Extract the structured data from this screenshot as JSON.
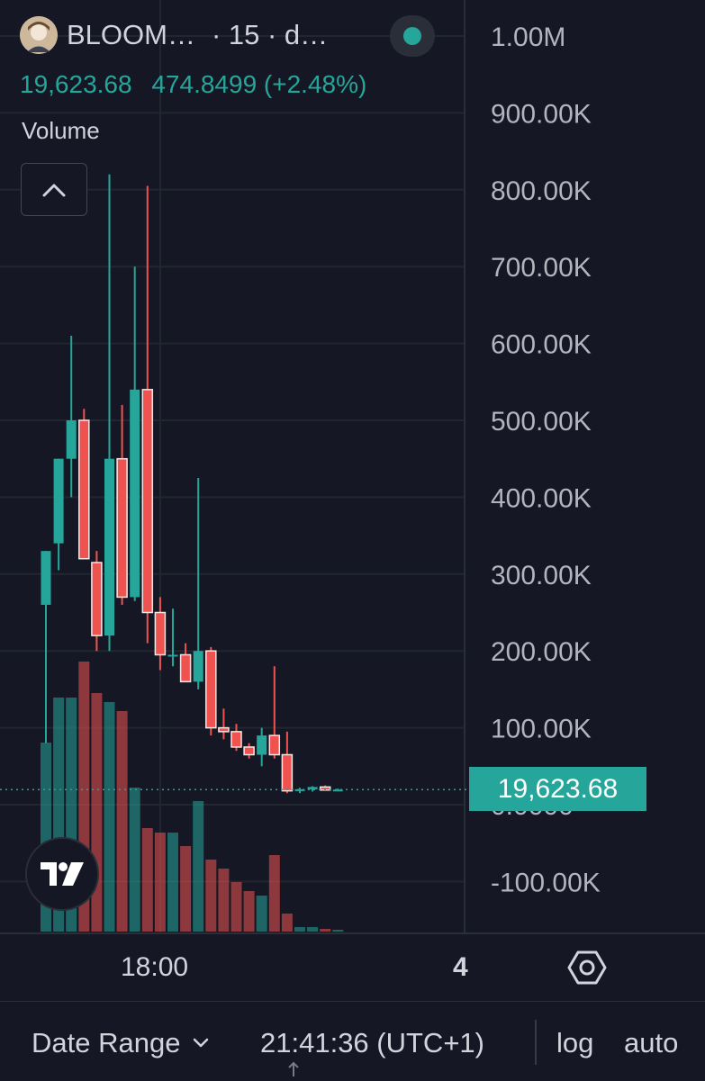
{
  "header": {
    "symbol": "BLOOM…",
    "interval": "· 15 · d…",
    "last_price": "19,623.68",
    "change": "474.8499 (+2.48%)",
    "status_color": "#26a69a"
  },
  "volume_label": "Volume",
  "icons": {
    "collapse": "chevron-up-icon",
    "logo": "tradingview-logo",
    "settings": "gear-icon",
    "date_range_caret": "chevron-down-icon"
  },
  "price_axis": {
    "labels": [
      "1.00M",
      "900.00K",
      "800.00K",
      "700.00K",
      "600.00K",
      "500.00K",
      "400.00K",
      "300.00K",
      "200.00K",
      "100.00K",
      "0.0000",
      "-100.00K"
    ],
    "current_price_tag": "19,623.68"
  },
  "time_axis": {
    "label": "18:00",
    "number": "4"
  },
  "bottom_bar": {
    "date_range": "Date Range",
    "clock": "21:41:36 (UTC+1)",
    "log": "log",
    "auto": "auto"
  },
  "colors": {
    "up": "#26a69a",
    "down": "#ef5350",
    "background": "#151824"
  },
  "chart_data": {
    "type": "candlestick",
    "ylim": [
      -145000,
      1050000
    ],
    "last_value": 19623.68,
    "candles": [
      {
        "o": 260000,
        "h": 330000,
        "l": 80000,
        "c": 330000
      },
      {
        "o": 340000,
        "h": 450000,
        "l": 305000,
        "c": 450000
      },
      {
        "o": 450000,
        "h": 610000,
        "l": 400000,
        "c": 500000
      },
      {
        "o": 500000,
        "h": 515000,
        "l": 320000,
        "c": 320000
      },
      {
        "o": 315000,
        "h": 330000,
        "l": 200000,
        "c": 220000
      },
      {
        "o": 220000,
        "h": 820000,
        "l": 200000,
        "c": 450000
      },
      {
        "o": 450000,
        "h": 520000,
        "l": 260000,
        "c": 270000
      },
      {
        "o": 270000,
        "h": 700000,
        "l": 265000,
        "c": 540000
      },
      {
        "o": 540000,
        "h": 805000,
        "l": 210000,
        "c": 250000
      },
      {
        "o": 250000,
        "h": 270000,
        "l": 175000,
        "c": 195000
      },
      {
        "o": 195000,
        "h": 255000,
        "l": 180000,
        "c": 195000
      },
      {
        "o": 195000,
        "h": 210000,
        "l": 160000,
        "c": 160000
      },
      {
        "o": 160000,
        "h": 425000,
        "l": 150000,
        "c": 200000
      },
      {
        "o": 200000,
        "h": 205000,
        "l": 90000,
        "c": 100000
      },
      {
        "o": 100000,
        "h": 125000,
        "l": 85000,
        "c": 95000
      },
      {
        "o": 95000,
        "h": 105000,
        "l": 70000,
        "c": 75000
      },
      {
        "o": 75000,
        "h": 80000,
        "l": 60000,
        "c": 65000
      },
      {
        "o": 65000,
        "h": 100000,
        "l": 50000,
        "c": 90000
      },
      {
        "o": 90000,
        "h": 180000,
        "l": 60000,
        "c": 65000
      },
      {
        "o": 65000,
        "h": 95000,
        "l": 15000,
        "c": 18000
      },
      {
        "o": 18000,
        "h": 22000,
        "l": 15000,
        "c": 20000
      },
      {
        "o": 20000,
        "h": 24000,
        "l": 17000,
        "c": 23000
      },
      {
        "o": 23000,
        "h": 25000,
        "l": 18000,
        "c": 19000
      },
      {
        "o": 19000,
        "h": 21000,
        "l": 18000,
        "c": 19624
      }
    ],
    "volume": [
      210,
      260,
      260,
      300,
      265,
      255,
      245,
      160,
      115,
      110,
      110,
      95,
      145,
      80,
      70,
      55,
      45,
      40,
      85,
      20,
      5,
      5,
      3,
      2
    ]
  }
}
